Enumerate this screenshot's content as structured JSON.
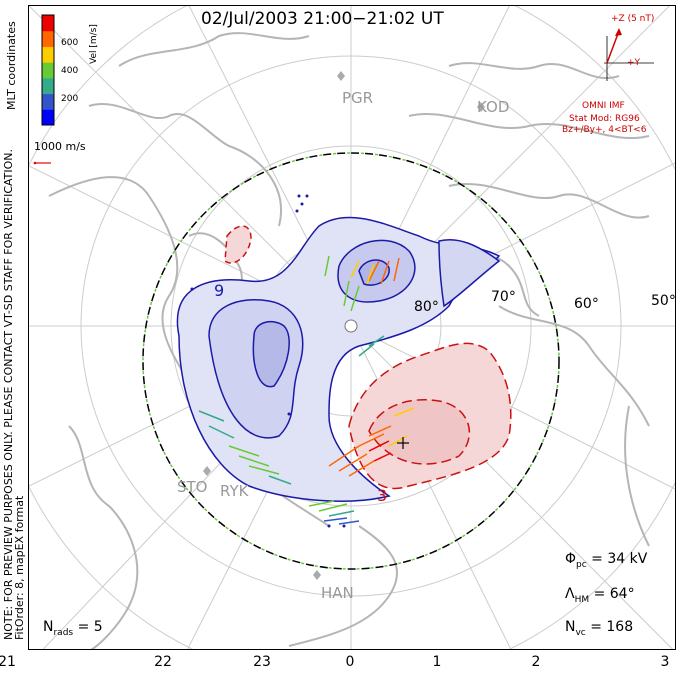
{
  "title": "02/Jul/2003 21:00−21:02 UT",
  "side_note": {
    "line1": "NOTE: FOR PREVIEW PURPOSES ONLY. PLEASE CONTACT VT-SD STAFF FOR VERIFICATION.",
    "line2": "FitOrder: 8, mapEX format",
    "coords": "MLT coordinates"
  },
  "colorbar": {
    "label": "Vel [m/s]",
    "ticks": [
      "600",
      "400",
      "200"
    ],
    "colors": [
      "#0000ff",
      "#3355cc",
      "#33aa88",
      "#66cc33",
      "#ffcc00",
      "#ff6600",
      "#ee0000"
    ]
  },
  "reference_vector": "1000 m/s",
  "imf": {
    "bz_label": "+Z (5 nT)",
    "by_label": "+Y",
    "source": "OMNI IMF",
    "stat_mod": "Stat Mod: RG96",
    "condition": "Bz+/By+, 4<BT<6"
  },
  "places": [
    "PGR",
    "KOD",
    "STO",
    "RYK",
    "HAN"
  ],
  "latitude_labels": [
    "80°",
    "70°",
    "60°",
    "50°"
  ],
  "mlt_ticks": [
    "21",
    "22",
    "23",
    "0",
    "1",
    "2",
    "3"
  ],
  "contours": {
    "negative_labels": [
      "9",
      "3"
    ]
  },
  "stats": {
    "phi_pc": {
      "symbol": "Φ",
      "sub": "pc",
      "value": "= 34 kV"
    },
    "lambda_hm": {
      "symbol": "Λ",
      "sub": "HM",
      "value": "= 64°"
    },
    "n_vc": {
      "symbol": "N",
      "sub": "vc",
      "value": "= 168"
    },
    "n_rads": {
      "symbol": "N",
      "sub": "rads",
      "value": "= 5"
    }
  }
}
